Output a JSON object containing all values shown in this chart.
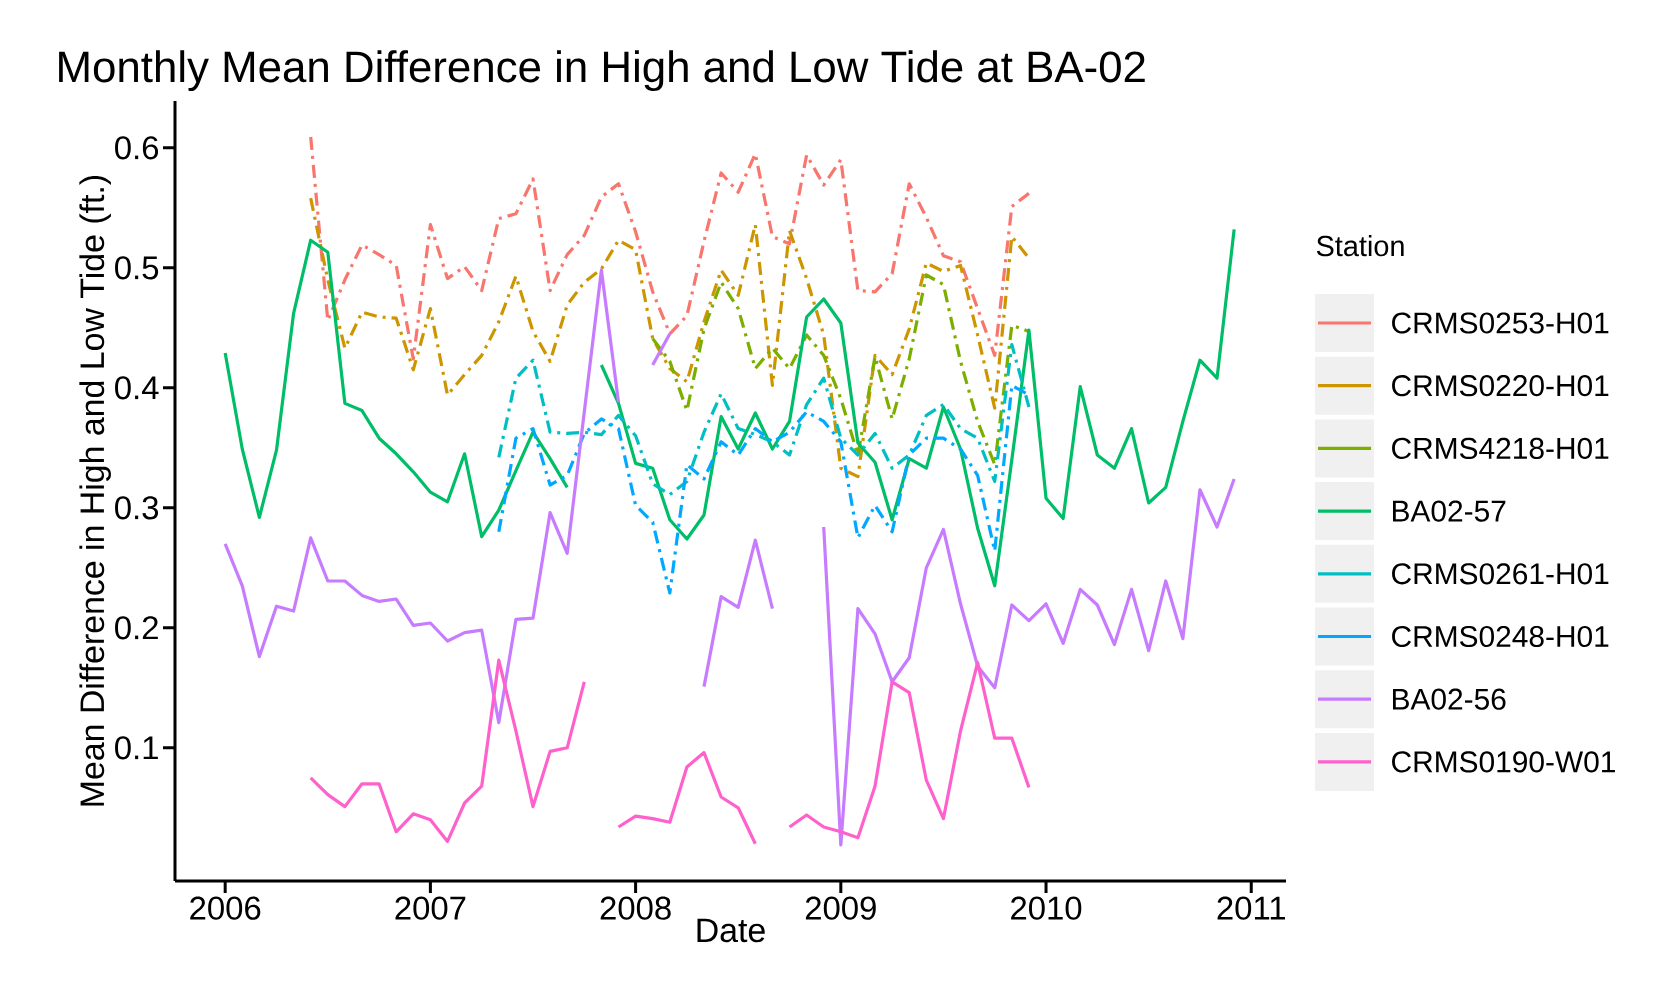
{
  "chart_data": {
    "type": "line",
    "title": "Monthly Mean Difference in High and Low Tide at BA-02",
    "xlabel": "Date",
    "ylabel": "Mean Difference in High and Low Tide (ft.)",
    "legend_title": "Station",
    "legend": "right",
    "marker": "none",
    "x": [
      "2006-01",
      "2006-02",
      "2006-03",
      "2006-04",
      "2006-05",
      "2006-06",
      "2006-07",
      "2006-08",
      "2006-09",
      "2006-10",
      "2006-11",
      "2006-12",
      "2007-01",
      "2007-02",
      "2007-03",
      "2007-04",
      "2007-05",
      "2007-06",
      "2007-07",
      "2007-08",
      "2007-09",
      "2007-10",
      "2007-11",
      "2007-12",
      "2008-01",
      "2008-02",
      "2008-03",
      "2008-04",
      "2008-05",
      "2008-06",
      "2008-07",
      "2008-08",
      "2008-09",
      "2008-10",
      "2008-11",
      "2008-12",
      "2009-01",
      "2009-02",
      "2009-03",
      "2009-04",
      "2009-05",
      "2009-06",
      "2009-07",
      "2009-08",
      "2009-09",
      "2009-10",
      "2009-11",
      "2009-12",
      "2010-01",
      "2010-02",
      "2010-03",
      "2010-04",
      "2010-05",
      "2010-06",
      "2010-07",
      "2010-08",
      "2010-09",
      "2010-10",
      "2010-11",
      "2010-12"
    ],
    "xlim": [
      "2005-10-03",
      "2011-03-02"
    ],
    "xticks": [
      "2006",
      "2007",
      "2008",
      "2009",
      "2010",
      "2011"
    ],
    "ylim": [
      -0.011,
      0.639
    ],
    "yticks": [
      0.1,
      0.2,
      0.3,
      0.4,
      0.5,
      0.6
    ],
    "series": [
      {
        "name": "CRMS0253-H01",
        "color": "#f8766d",
        "line_style": "dashed",
        "values": [
          null,
          null,
          null,
          null,
          null,
          0.609,
          0.456,
          0.49,
          0.519,
          0.511,
          0.502,
          0.424,
          0.536,
          0.491,
          0.501,
          0.481,
          0.541,
          0.545,
          0.574,
          0.481,
          0.511,
          0.527,
          0.559,
          0.57,
          0.53,
          0.48,
          0.445,
          0.46,
          0.522,
          0.579,
          0.563,
          0.595,
          0.526,
          0.52,
          0.594,
          0.569,
          0.59,
          0.481,
          0.48,
          0.495,
          0.57,
          0.542,
          0.51,
          0.505,
          0.466,
          0.427,
          0.551,
          0.562,
          null,
          null,
          null,
          null,
          null,
          null,
          null,
          null,
          null,
          null,
          null,
          null
        ]
      },
      {
        "name": "CRMS0220-H01",
        "color": "#cd9600",
        "line_style": "dashed",
        "values": [
          null,
          null,
          null,
          null,
          null,
          0.558,
          0.49,
          0.433,
          0.463,
          0.459,
          0.458,
          0.415,
          0.466,
          0.394,
          0.411,
          0.427,
          0.455,
          0.493,
          0.447,
          0.422,
          0.469,
          0.488,
          0.499,
          0.523,
          0.515,
          0.441,
          0.416,
          0.405,
          0.455,
          0.498,
          0.477,
          0.536,
          0.402,
          0.531,
          0.491,
          0.444,
          0.333,
          0.326,
          0.427,
          0.411,
          0.449,
          0.504,
          0.497,
          0.502,
          0.444,
          0.383,
          0.526,
          0.508,
          null,
          null,
          null,
          null,
          null,
          null,
          null,
          null,
          null,
          null,
          null,
          null
        ]
      },
      {
        "name": "CRMS4218-H01",
        "color": "#7cae00",
        "line_style": "dashed",
        "values": [
          null,
          null,
          null,
          null,
          null,
          null,
          null,
          null,
          null,
          null,
          null,
          null,
          null,
          null,
          null,
          null,
          null,
          null,
          null,
          null,
          null,
          null,
          null,
          null,
          null,
          0.441,
          0.422,
          0.381,
          0.449,
          0.488,
          0.466,
          0.416,
          0.433,
          0.416,
          0.444,
          0.427,
          0.391,
          0.344,
          0.426,
          0.374,
          0.424,
          0.494,
          0.486,
          0.422,
          0.372,
          0.336,
          0.452,
          0.447,
          null,
          null,
          null,
          null,
          null,
          null,
          null,
          null,
          null,
          null,
          null,
          null
        ]
      },
      {
        "name": "BA02-57",
        "color": "#00be67",
        "line_style": "solid",
        "values": [
          0.429,
          0.349,
          0.292,
          0.348,
          0.462,
          0.523,
          0.513,
          0.387,
          0.381,
          0.358,
          0.345,
          0.33,
          0.313,
          0.305,
          0.345,
          0.276,
          0.298,
          0.331,
          0.363,
          0.341,
          0.317,
          null,
          0.419,
          0.387,
          0.337,
          0.333,
          0.29,
          0.274,
          0.294,
          0.376,
          0.349,
          0.379,
          0.349,
          0.372,
          0.459,
          0.474,
          0.454,
          0.354,
          0.338,
          0.29,
          0.341,
          0.333,
          0.384,
          0.349,
          0.283,
          0.235,
          0.34,
          0.448,
          0.308,
          0.291,
          0.401,
          0.344,
          0.333,
          0.366,
          0.304,
          0.317,
          0.372,
          0.423,
          0.408,
          0.532
        ]
      },
      {
        "name": "CRMS0261-H01",
        "color": "#00bfc4",
        "line_style": "dashed",
        "values": [
          null,
          null,
          null,
          null,
          null,
          null,
          null,
          null,
          null,
          null,
          null,
          null,
          null,
          null,
          null,
          null,
          0.342,
          0.408,
          0.423,
          0.363,
          0.362,
          0.363,
          0.361,
          0.377,
          0.36,
          0.32,
          0.311,
          0.322,
          0.363,
          0.395,
          0.366,
          0.361,
          0.355,
          0.344,
          0.386,
          0.408,
          0.358,
          0.344,
          0.362,
          0.333,
          0.344,
          0.377,
          0.386,
          0.366,
          0.358,
          0.322,
          0.436,
          0.384,
          null,
          null,
          null,
          null,
          null,
          null,
          null,
          null,
          null,
          null,
          null,
          null
        ]
      },
      {
        "name": "CRMS0248-H01",
        "color": "#00a9ff",
        "line_style": "dashed",
        "values": [
          null,
          null,
          null,
          null,
          null,
          null,
          null,
          null,
          null,
          null,
          null,
          null,
          null,
          null,
          null,
          null,
          0.28,
          0.358,
          0.366,
          0.319,
          0.327,
          0.362,
          0.374,
          0.366,
          0.302,
          0.288,
          0.229,
          0.336,
          0.324,
          0.355,
          0.344,
          0.366,
          0.355,
          0.363,
          0.38,
          0.372,
          0.355,
          0.275,
          0.302,
          0.28,
          0.344,
          0.358,
          0.358,
          0.349,
          0.327,
          0.264,
          0.402,
          0.394,
          null,
          null,
          null,
          null,
          null,
          null,
          null,
          null,
          null,
          null,
          null,
          null
        ]
      },
      {
        "name": "BA02-56",
        "color": "#c77cff",
        "line_style": "solid",
        "values": [
          0.27,
          0.235,
          0.176,
          0.218,
          0.214,
          0.275,
          0.239,
          0.239,
          0.227,
          0.222,
          0.224,
          0.202,
          0.204,
          0.189,
          0.196,
          0.198,
          0.121,
          0.207,
          0.208,
          0.296,
          0.262,
          0.38,
          0.498,
          0.388,
          null,
          0.419,
          0.445,
          null,
          0.151,
          0.226,
          0.217,
          0.273,
          0.216,
          null,
          null,
          0.284,
          0.019,
          0.216,
          0.195,
          0.155,
          0.175,
          0.25,
          0.282,
          0.22,
          0.168,
          0.15,
          0.219,
          0.206,
          0.22,
          0.187,
          0.232,
          0.219,
          0.186,
          0.232,
          0.181,
          0.239,
          0.191,
          0.315,
          0.284,
          0.324
        ]
      },
      {
        "name": "CRMS0190-W01",
        "color": "#ff61cc",
        "line_style": "solid",
        "values": [
          null,
          null,
          null,
          null,
          null,
          0.075,
          0.061,
          0.051,
          0.07,
          0.07,
          0.03,
          0.045,
          0.04,
          0.022,
          0.054,
          0.068,
          0.173,
          0.114,
          0.051,
          0.097,
          0.1,
          0.155,
          null,
          0.034,
          0.043,
          0.041,
          0.038,
          0.084,
          0.096,
          0.059,
          0.05,
          0.02,
          null,
          0.034,
          0.044,
          0.034,
          0.03,
          0.025,
          0.068,
          0.155,
          0.146,
          0.073,
          0.041,
          0.114,
          0.171,
          0.108,
          0.108,
          0.067,
          null,
          null,
          null,
          null,
          null,
          null,
          null,
          null,
          null,
          null,
          null,
          null
        ]
      }
    ]
  }
}
